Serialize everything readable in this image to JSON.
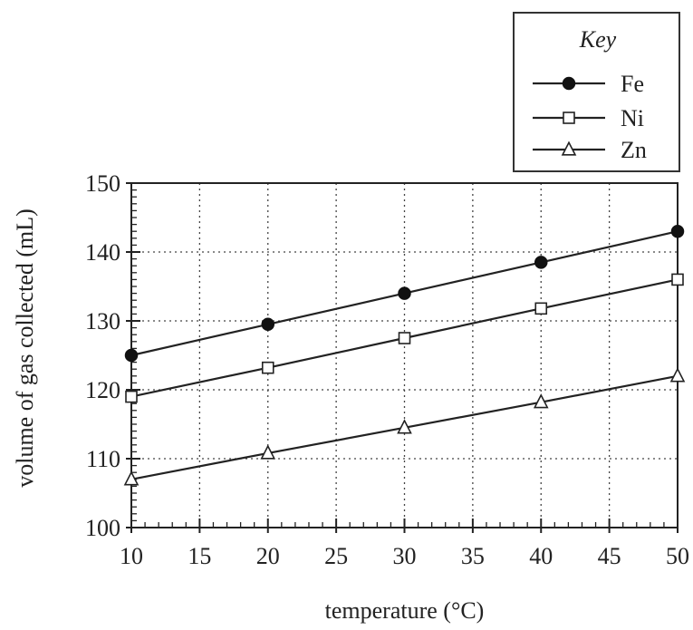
{
  "chart_data": {
    "type": "line",
    "title": "",
    "xlabel": "temperature (°C)",
    "ylabel": "volume of gas collected (mL)",
    "xlim": [
      10,
      50
    ],
    "ylim": [
      100,
      150
    ],
    "x_ticks": [
      10,
      15,
      20,
      25,
      30,
      35,
      40,
      45,
      50
    ],
    "y_ticks": [
      100,
      110,
      120,
      130,
      140,
      150
    ],
    "x_tick_labels": [
      "10",
      "15",
      "20",
      "25",
      "30",
      "35",
      "40",
      "45",
      "50"
    ],
    "y_tick_labels": [
      "100",
      "110",
      "120",
      "130",
      "140",
      "150"
    ],
    "grid": true,
    "legend": {
      "title": "Key",
      "placement": "top-right"
    },
    "series": [
      {
        "name": "Fe",
        "marker": "filled-circle",
        "x": [
          10,
          20,
          30,
          40,
          50
        ],
        "y": [
          125,
          129.5,
          134,
          138.5,
          143
        ]
      },
      {
        "name": "Ni",
        "marker": "open-square",
        "x": [
          10,
          20,
          30,
          40,
          50
        ],
        "y": [
          119,
          123.2,
          127.5,
          131.8,
          136
        ]
      },
      {
        "name": "Zn",
        "marker": "open-triangle",
        "x": [
          10,
          20,
          30,
          40,
          50
        ],
        "y": [
          107,
          110.8,
          114.5,
          118.2,
          122
        ]
      }
    ]
  }
}
